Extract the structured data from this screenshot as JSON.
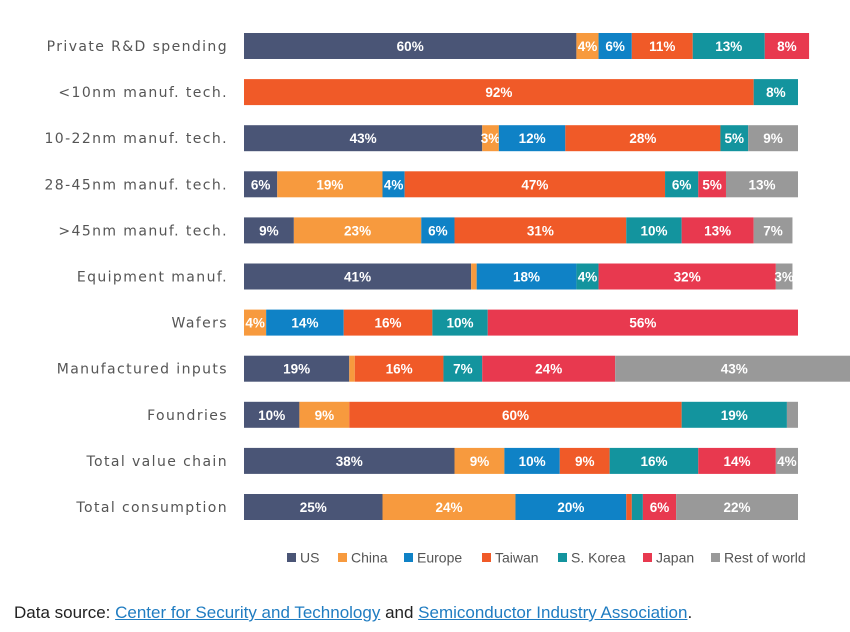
{
  "chart_data": {
    "type": "bar",
    "orientation": "horizontal",
    "stacked": true,
    "normalized": true,
    "xlim": [
      0,
      100
    ],
    "categories": [
      "Private R&D spending",
      "<10nm manuf. tech.",
      "10-22nm manuf. tech.",
      "28-45nm manuf. tech.",
      ">45nm manuf. tech.",
      "Equipment manuf.",
      "Wafers",
      "Manufactured inputs",
      "Foundries",
      "Total value chain",
      "Total consumption"
    ],
    "series": [
      {
        "name": "US",
        "color": "#4a5576",
        "values": [
          60,
          0,
          43,
          6,
          9,
          41,
          0,
          19,
          10,
          38,
          25
        ],
        "labels": [
          "60%",
          "",
          "43%",
          "6%",
          "9%",
          "41%",
          "",
          "19%",
          "10%",
          "38%",
          "25%"
        ]
      },
      {
        "name": "China",
        "color": "#f79a3e",
        "values": [
          4,
          0,
          3,
          19,
          23,
          1,
          4,
          1,
          9,
          9,
          24
        ],
        "labels": [
          "4%",
          "",
          "3%",
          "19%",
          "23%",
          "",
          "4%",
          "",
          "9%",
          "9%",
          "24%"
        ]
      },
      {
        "name": "Europe",
        "color": "#0f82c6",
        "values": [
          6,
          0,
          12,
          4,
          6,
          18,
          14,
          0,
          0,
          10,
          20
        ],
        "labels": [
          "6%",
          "",
          "12%",
          "4%",
          "6%",
          "18%",
          "14%",
          "",
          "",
          "10%",
          "20%"
        ]
      },
      {
        "name": "Taiwan",
        "color": "#f05a28",
        "values": [
          11,
          92,
          28,
          47,
          31,
          0,
          16,
          16,
          60,
          9,
          1
        ],
        "labels": [
          "11%",
          "92%",
          "28%",
          "47%",
          "31%",
          "",
          "16%",
          "16%",
          "60%",
          "9%",
          ""
        ]
      },
      {
        "name": "S. Korea",
        "color": "#13949e",
        "values": [
          13,
          8,
          5,
          6,
          10,
          4,
          10,
          7,
          19,
          16,
          2
        ],
        "labels": [
          "13%",
          "8%",
          "5%",
          "6%",
          "10%",
          "4%",
          "10%",
          "7%",
          "19%",
          "16%",
          ""
        ]
      },
      {
        "name": "Japan",
        "color": "#e8394f",
        "values": [
          8,
          0,
          0,
          5,
          13,
          32,
          56,
          24,
          0,
          14,
          6
        ],
        "labels": [
          "8%",
          "",
          "",
          "5%",
          "13%",
          "32%",
          "56%",
          "24%",
          "",
          "14%",
          "6%"
        ]
      },
      {
        "name": "Rest of world",
        "color": "#999999",
        "values": [
          0,
          0,
          9,
          13,
          7,
          3,
          0,
          43,
          2,
          4,
          22
        ],
        "labels": [
          "",
          "",
          "9%",
          "13%",
          "7%",
          "3%",
          "",
          "43%",
          "",
          "4%",
          "22%"
        ]
      }
    ],
    "legend_position": "bottom-right",
    "grid": false
  },
  "footer": {
    "prefix": "Data source: ",
    "link1": "Center for Security and Technology",
    "middle": " and ",
    "link2": "Semiconductor Industry Association",
    "suffix": "."
  }
}
